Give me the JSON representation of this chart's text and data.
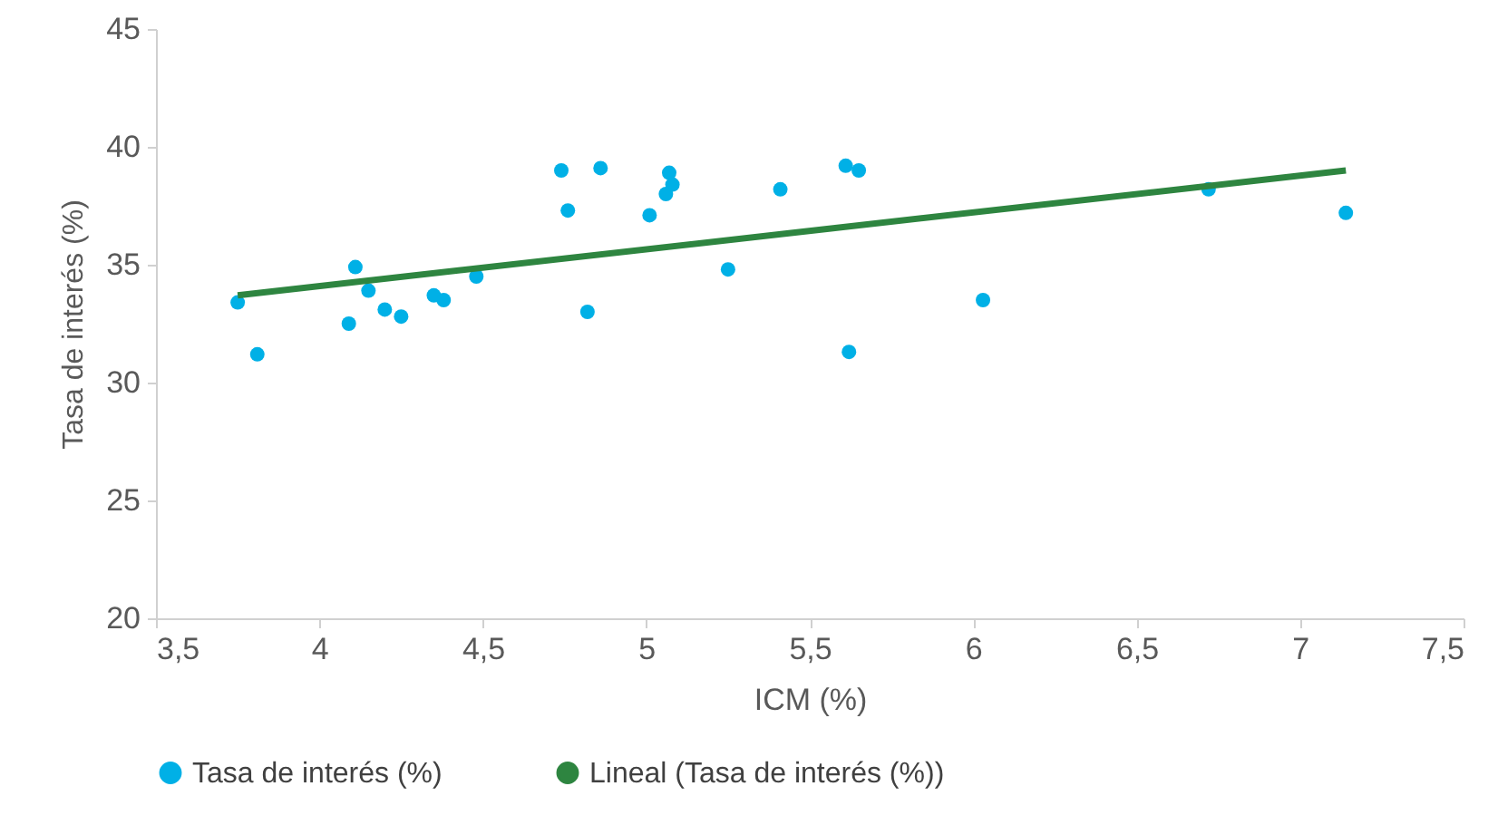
{
  "chart_data": {
    "type": "scatter",
    "xlabel": "ICM (%)",
    "ylabel": "Tasa de interés (%)",
    "xlim": [
      3.5,
      7.5
    ],
    "xticks": [
      {
        "value": 3.5,
        "label": "3,5"
      },
      4,
      {
        "value": 4.5,
        "label": "4,5"
      },
      5,
      {
        "value": 5.5,
        "label": "5,5"
      },
      6,
      {
        "value": 6.5,
        "label": "6,5"
      },
      7,
      {
        "value": 7.5,
        "label": "7,5"
      }
    ],
    "ylim": [
      20,
      45
    ],
    "yticks": [
      20,
      25,
      30,
      35,
      40,
      45
    ],
    "grid": false,
    "legend": "bottom",
    "series": [
      {
        "name": "Tasa de interés (%)",
        "type": "scatter",
        "marker": "circle",
        "color": "#00b0e6",
        "x": [
          3.75,
          3.81,
          4.11,
          4.15,
          4.09,
          4.2,
          4.25,
          4.35,
          4.38,
          4.48,
          4.74,
          4.76,
          4.86,
          4.82,
          5.01,
          5.07,
          5.08,
          5.06,
          5.25,
          5.41,
          5.61,
          5.65,
          5.62,
          6.03,
          6.72,
          7.14
        ],
        "values": [
          33.4,
          31.2,
          34.9,
          33.9,
          32.5,
          33.1,
          32.8,
          33.7,
          33.5,
          34.5,
          39.0,
          37.3,
          39.1,
          33.0,
          37.1,
          38.9,
          38.4,
          38.0,
          34.8,
          38.2,
          39.2,
          39.0,
          31.3,
          33.5,
          38.2,
          37.2
        ]
      },
      {
        "name": "Lineal (Tasa de interés (%))",
        "type": "line",
        "color": "#2e8540",
        "x": [
          3.75,
          7.14
        ],
        "values": [
          33.7,
          39.0
        ]
      }
    ]
  }
}
